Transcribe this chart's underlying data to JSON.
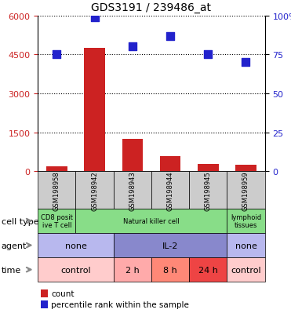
{
  "title": "GDS3191 / 239486_at",
  "samples": [
    "GSM198958",
    "GSM198942",
    "GSM198943",
    "GSM198944",
    "GSM198945",
    "GSM198959"
  ],
  "counts": [
    200,
    4750,
    1250,
    600,
    280,
    240
  ],
  "percentile_ranks": [
    75,
    99,
    80,
    87,
    75,
    70
  ],
  "ylim_left": [
    0,
    6000
  ],
  "ylim_right": [
    0,
    100
  ],
  "yticks_left": [
    0,
    1500,
    3000,
    4500,
    6000
  ],
  "ytick_labels_left": [
    "0",
    "1500",
    "3000",
    "4500",
    "6000"
  ],
  "yticks_right": [
    0,
    25,
    50,
    75,
    100
  ],
  "ytick_labels_right": [
    "0",
    "25",
    "50",
    "75",
    "100%"
  ],
  "bar_color": "#cc2222",
  "dot_color": "#2222cc",
  "dot_size": 45,
  "cell_type_spans": [
    1,
    4,
    1
  ],
  "cell_type_texts": [
    "CD8 posit\nive T cell",
    "Natural killer cell",
    "lymphoid\ntissues"
  ],
  "cell_type_colors": [
    "#88dd88",
    "#88dd88",
    "#88dd88"
  ],
  "agent_spans": [
    2,
    3,
    1
  ],
  "agent_texts": [
    "none",
    "IL-2",
    "none"
  ],
  "agent_colors": [
    "#b8b8ee",
    "#8888cc",
    "#b8b8ee"
  ],
  "time_spans": [
    2,
    1,
    1,
    1,
    1
  ],
  "time_texts": [
    "control",
    "2 h",
    "8 h",
    "24 h",
    "control"
  ],
  "time_colors": [
    "#ffcccc",
    "#ffaaaa",
    "#ff8877",
    "#ee4444",
    "#ffcccc"
  ],
  "legend_texts": [
    "count",
    "percentile rank within the sample"
  ],
  "row_label_names": [
    "cell type",
    "agent",
    "time"
  ],
  "bg_color": "#ffffff",
  "grid_color": "#000000",
  "sample_bg": "#cccccc"
}
